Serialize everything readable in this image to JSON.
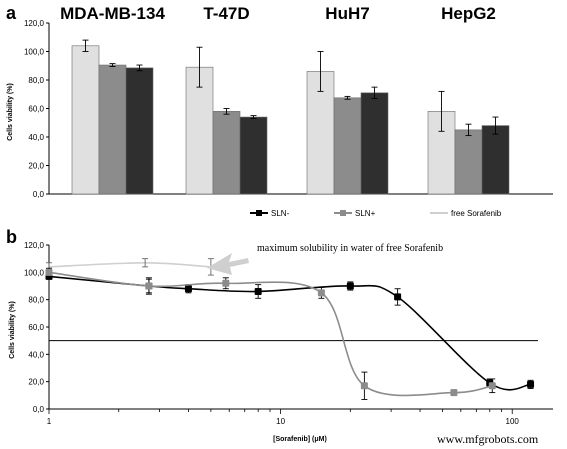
{
  "chart_data": [
    {
      "panel": "a",
      "type": "bar",
      "categories": [
        "MDA-MB-134",
        "T-47D",
        "HuH7",
        "HepG2"
      ],
      "ylabel": "Cells viability (%)",
      "ylim": [
        0,
        120
      ],
      "yticks": [
        "0,0",
        "20,0",
        "40,0",
        "60,0",
        "80,0",
        "100,0",
        "120,0"
      ],
      "grid": false,
      "legend_position": "bottom-right",
      "series": [
        {
          "name": "free Sorafenib",
          "color": "#e0e0e0",
          "values": [
            104,
            89,
            86,
            58
          ],
          "errors": [
            4,
            14,
            14,
            14
          ]
        },
        {
          "name": "SLN+",
          "color": "#8c8c8c",
          "values": [
            90.5,
            58,
            67.5,
            45
          ],
          "errors": [
            1,
            2,
            1,
            4
          ]
        },
        {
          "name": "SLN-",
          "color": "#2f2f2f",
          "values": [
            88.5,
            54,
            71,
            48
          ],
          "errors": [
            2,
            1,
            4,
            6
          ]
        }
      ],
      "legend": [
        {
          "label": "SLN-",
          "color": "#000000",
          "style": "line-square"
        },
        {
          "label": "SLN+",
          "color": "#8c8c8c",
          "style": "line-square"
        },
        {
          "label": "free Sorafenib",
          "color": "#cfcfcf",
          "style": "line"
        }
      ]
    },
    {
      "panel": "b",
      "type": "line",
      "xlabel": "[Sorafenib] (μM)",
      "ylabel": "Cells viability (%)",
      "xscale": "log",
      "xlim": [
        1,
        150
      ],
      "ylim": [
        0,
        120
      ],
      "xticks": [
        "1",
        "10",
        "100"
      ],
      "yticks": [
        "0,0",
        "20,0",
        "40,0",
        "60,0",
        "80,0",
        "100,0",
        "120,0"
      ],
      "reference_line_y": 50,
      "annotation": "maximum solubility in water of free Sorafenib",
      "series": [
        {
          "name": "SLN-",
          "color": "#000000",
          "x": [
            1,
            2.7,
            4,
            8,
            20,
            32,
            80,
            120
          ],
          "y": [
            97,
            90,
            88,
            86,
            90,
            82,
            19,
            18
          ],
          "errors": [
            2,
            5,
            3,
            5,
            3,
            6,
            3,
            3
          ]
        },
        {
          "name": "SLN+",
          "color": "#8c8c8c",
          "x": [
            1,
            2.7,
            5.8,
            15,
            23,
            56,
            82
          ],
          "y": [
            100,
            90,
            92,
            85,
            17,
            12,
            17
          ],
          "errors": [
            3,
            6,
            4,
            4,
            10,
            2,
            5
          ]
        },
        {
          "name": "free Sorafenib",
          "color": "#cfcfcf",
          "x": [
            1,
            2.6,
            5
          ],
          "y": [
            104,
            107,
            104
          ],
          "errors": [
            3,
            3,
            6
          ]
        }
      ]
    }
  ],
  "labels": {
    "panel_a": "a",
    "panel_b": "b",
    "watermark": "www.mfgrobots.com"
  }
}
